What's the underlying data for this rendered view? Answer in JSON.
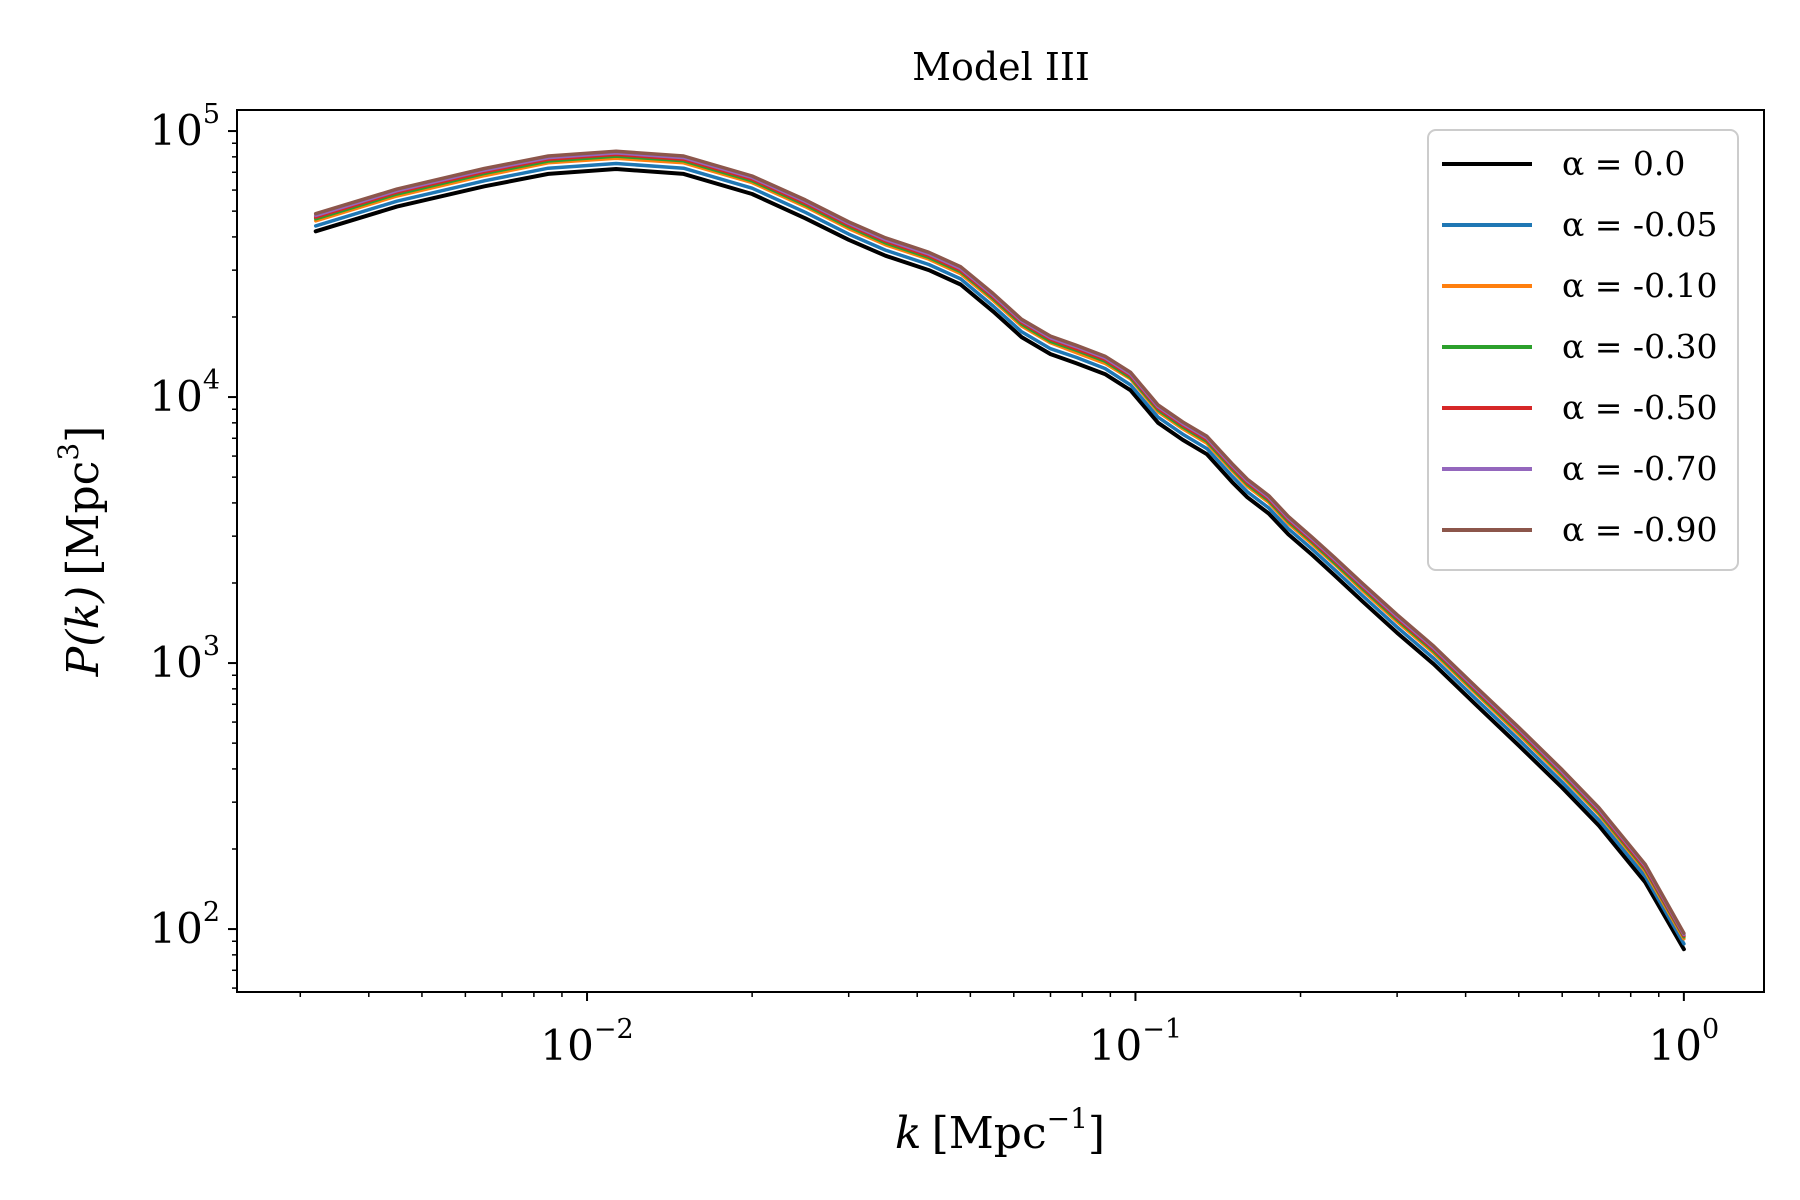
{
  "chart_data": {
    "type": "line",
    "title": "Model III",
    "xlabel": {
      "var": "k",
      "unit": "Mpc",
      "exp": "−1"
    },
    "ylabel": {
      "var": "P(k)",
      "unit": "Mpc",
      "exp": "3"
    },
    "xscale": "log",
    "yscale": "log",
    "xlim": [
      0.0023,
      1.4
    ],
    "ylim": [
      58,
      120000
    ],
    "x_ticks": [
      {
        "value": 0.01,
        "base": "10",
        "exp": "−2"
      },
      {
        "value": 0.1,
        "base": "10",
        "exp": "−1"
      },
      {
        "value": 1,
        "base": "10",
        "exp": "0"
      }
    ],
    "y_ticks": [
      {
        "value": 100,
        "base": "10",
        "exp": "2"
      },
      {
        "value": 1000,
        "base": "10",
        "exp": "3"
      },
      {
        "value": 10000,
        "base": "10",
        "exp": "4"
      },
      {
        "value": 100000,
        "base": "10",
        "exp": "5"
      }
    ],
    "legend_position": "top-right",
    "x": [
      0.0032,
      0.0045,
      0.0065,
      0.0085,
      0.0113,
      0.015,
      0.02,
      0.025,
      0.03,
      0.035,
      0.042,
      0.048,
      0.055,
      0.062,
      0.07,
      0.078,
      0.088,
      0.098,
      0.11,
      0.122,
      0.135,
      0.15,
      0.16,
      0.175,
      0.19,
      0.21,
      0.23,
      0.26,
      0.3,
      0.35,
      0.42,
      0.5,
      0.6,
      0.7,
      0.85,
      1.0
    ],
    "series": [
      {
        "name": "α = 0.0",
        "color": "#000000",
        "values": [
          42000,
          52000,
          62000,
          69000,
          72000,
          69000,
          58000,
          47000,
          39000,
          34000,
          30000,
          26500,
          21000,
          16800,
          14500,
          13400,
          12200,
          10600,
          8000,
          6900,
          6100,
          4800,
          4200,
          3650,
          3050,
          2550,
          2150,
          1700,
          1300,
          990,
          690,
          490,
          340,
          245,
          150,
          84
        ]
      },
      {
        "name": "α = -0.05",
        "color": "#1f77b4",
        "values": [
          44000,
          54500,
          65000,
          72500,
          75500,
          72500,
          61000,
          49500,
          41000,
          35700,
          31500,
          27800,
          22000,
          17600,
          15200,
          14100,
          12800,
          11100,
          8400,
          7250,
          6400,
          5050,
          4400,
          3830,
          3200,
          2680,
          2260,
          1785,
          1365,
          1040,
          725,
          515,
          357,
          257,
          158,
          88
        ]
      },
      {
        "name": "α = -0.10",
        "color": "#ff7f0e",
        "values": [
          46000,
          57000,
          68000,
          76000,
          79000,
          76000,
          64000,
          52000,
          43000,
          37400,
          33000,
          29100,
          23100,
          18500,
          16000,
          14700,
          13400,
          11700,
          8800,
          7600,
          6700,
          5300,
          4620,
          4020,
          3350,
          2800,
          2370,
          1870,
          1430,
          1090,
          760,
          540,
          374,
          270,
          165,
          92
        ]
      },
      {
        "name": "α = -0.30",
        "color": "#2ca02c",
        "values": [
          46800,
          58000,
          69300,
          77200,
          80500,
          77300,
          65000,
          52800,
          43700,
          38000,
          33500,
          29600,
          23500,
          18800,
          16200,
          15000,
          13650,
          11850,
          8950,
          7720,
          6820,
          5380,
          4700,
          4080,
          3410,
          2850,
          2400,
          1900,
          1455,
          1108,
          772,
          549,
          380,
          274,
          168,
          93.5
        ]
      },
      {
        "name": "α = -0.50",
        "color": "#d62728",
        "values": [
          47500,
          58900,
          70300,
          78400,
          81700,
          78400,
          66000,
          53600,
          44400,
          38600,
          34000,
          30000,
          23800,
          19100,
          16500,
          15200,
          13850,
          12030,
          9080,
          7840,
          6920,
          5460,
          4770,
          4140,
          3460,
          2890,
          2440,
          1930,
          1477,
          1125,
          784,
          557,
          386,
          278,
          170,
          94.5
        ]
      },
      {
        "name": "α = -0.70",
        "color": "#9467bd",
        "values": [
          48200,
          59700,
          71300,
          79500,
          82800,
          79500,
          66900,
          54400,
          45000,
          39100,
          34500,
          30450,
          24150,
          19350,
          16700,
          15450,
          14050,
          12200,
          9210,
          7950,
          7020,
          5540,
          4840,
          4200,
          3510,
          2930,
          2475,
          1955,
          1498,
          1140,
          795,
          565,
          391,
          282,
          173,
          95.5
        ]
      },
      {
        "name": "α = -0.90",
        "color": "#8c564b",
        "values": [
          48900,
          60500,
          72300,
          80600,
          83900,
          80600,
          67800,
          55100,
          45600,
          39700,
          35000,
          30900,
          24500,
          19600,
          16950,
          15650,
          14250,
          12380,
          9340,
          8060,
          7120,
          5620,
          4910,
          4260,
          3560,
          2970,
          2510,
          1985,
          1520,
          1157,
          806,
          573,
          397,
          286,
          175,
          96.5
        ]
      }
    ]
  }
}
